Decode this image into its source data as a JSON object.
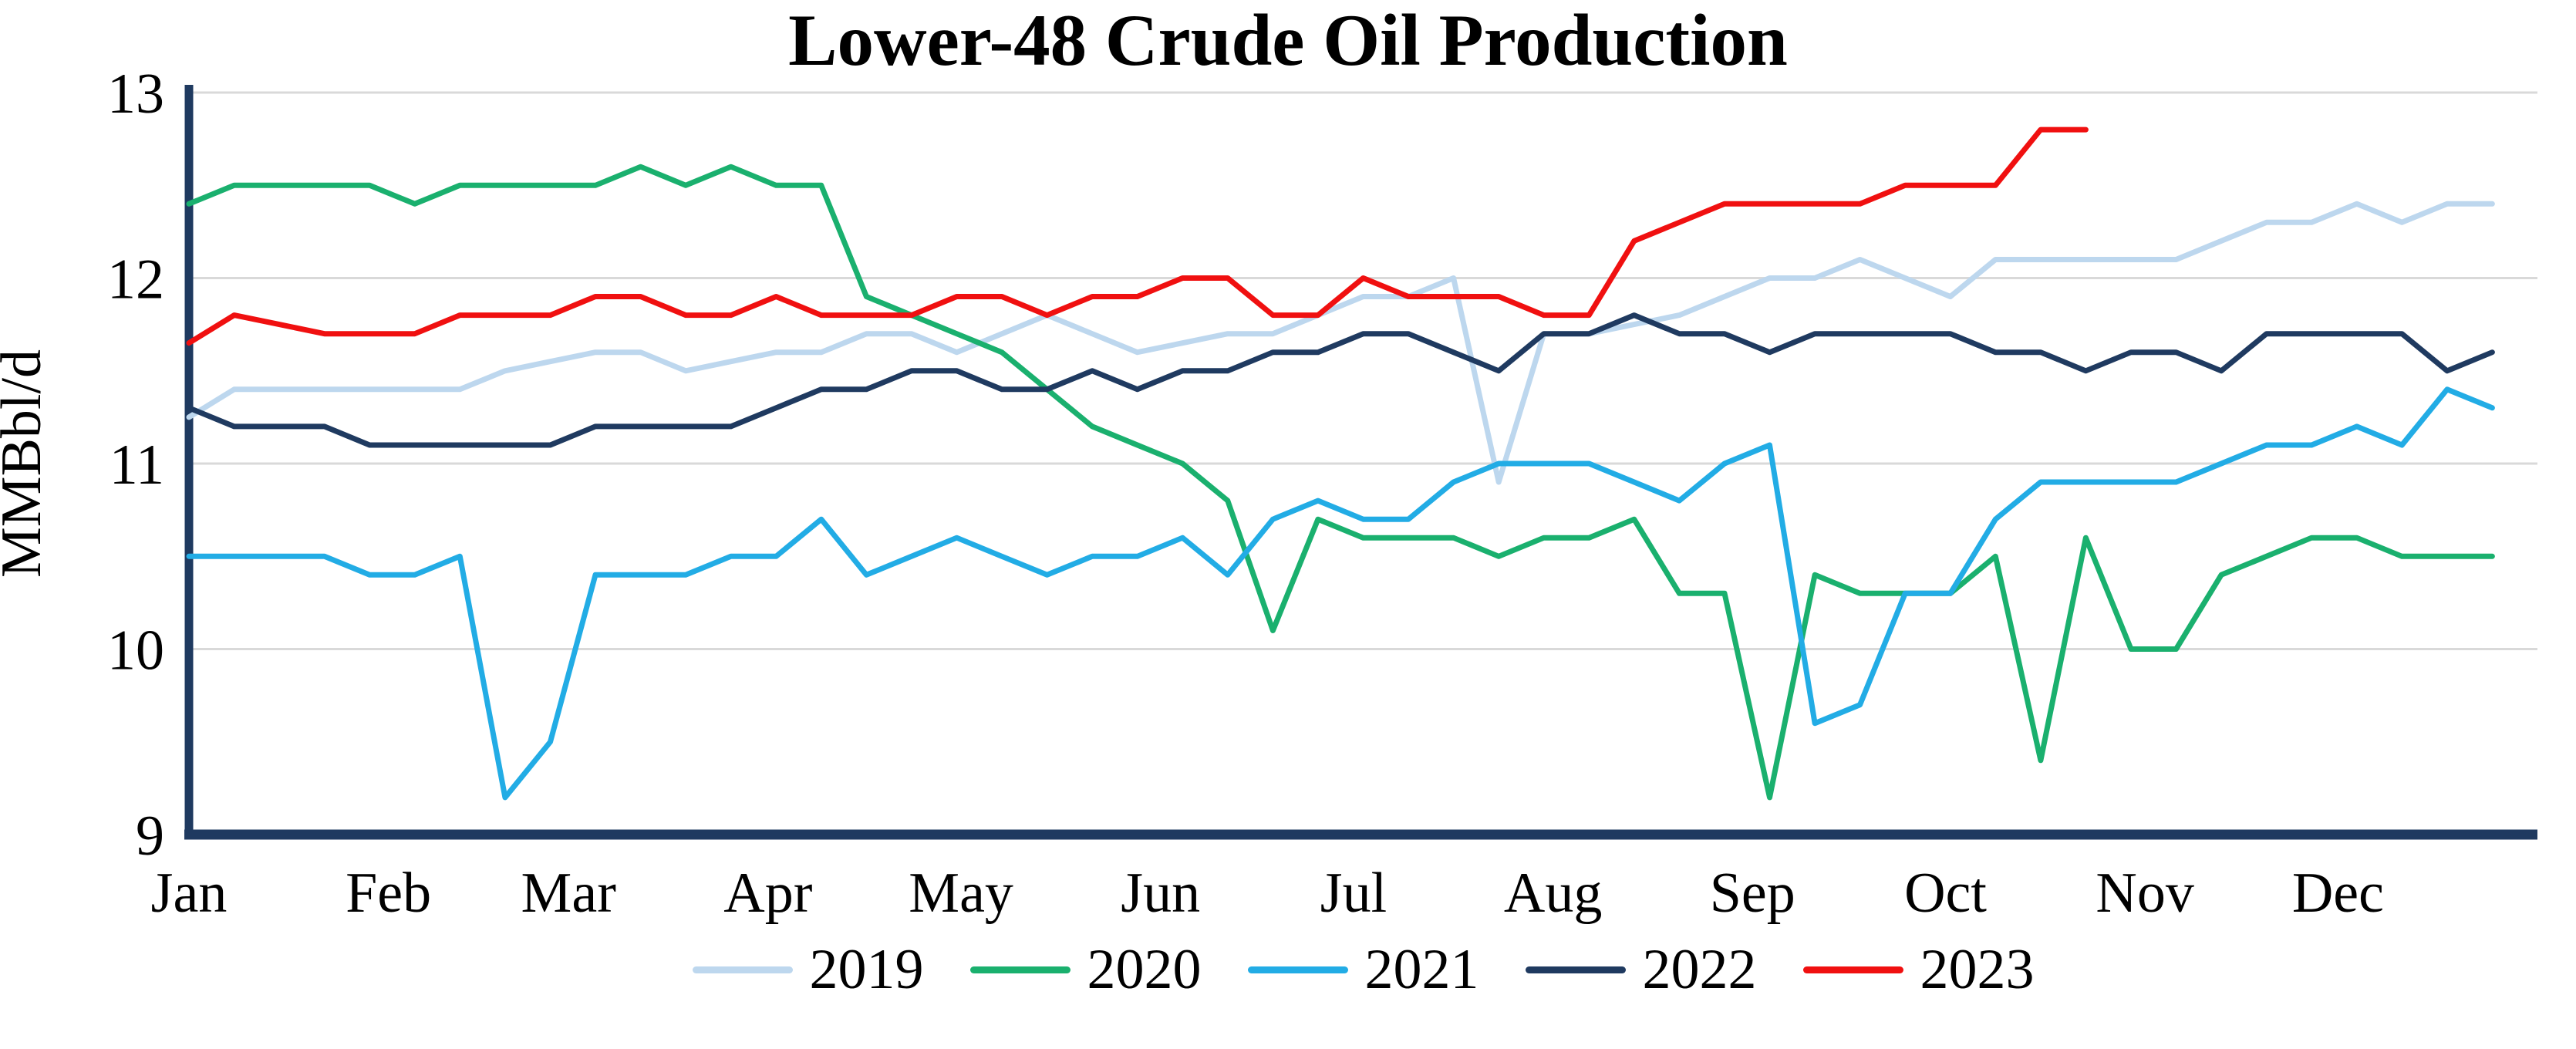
{
  "chart_data": {
    "type": "line",
    "title": "Lower-48 Crude Oil Production",
    "ylabel": "MMBbl/d",
    "ylim": [
      9,
      13
    ],
    "yticks": [
      9,
      10,
      11,
      12,
      13
    ],
    "x_categories": [
      "Jan",
      "Feb",
      "Mar",
      "Apr",
      "May",
      "Jun",
      "Jul",
      "Aug",
      "Sep",
      "Oct",
      "Nov",
      "Dec"
    ],
    "x_unit": "weekly values spanning Jan through Dec",
    "grid": "horizontal",
    "legend_position": "bottom",
    "colors": {
      "axis": "#1f3a60",
      "grid": "#d9d9d9",
      "text": "#000000"
    },
    "series": [
      {
        "name": "2019",
        "color": "#bdd7ee",
        "values": [
          11.25,
          11.4,
          11.4,
          11.4,
          11.4,
          11.4,
          11.4,
          11.5,
          11.55,
          11.6,
          11.6,
          11.5,
          11.55,
          11.6,
          11.6,
          11.7,
          11.7,
          11.6,
          11.7,
          11.8,
          11.7,
          11.6,
          11.65,
          11.7,
          11.7,
          11.8,
          11.9,
          11.9,
          12.0,
          10.9,
          11.7,
          11.7,
          11.75,
          11.8,
          11.9,
          12.0,
          12.0,
          12.1,
          12.0,
          11.9,
          12.1,
          12.1,
          12.1,
          12.1,
          12.1,
          12.2,
          12.3,
          12.3,
          12.4,
          12.3,
          12.4,
          12.4
        ]
      },
      {
        "name": "2020",
        "color": "#1ab06e",
        "values": [
          12.4,
          12.5,
          12.5,
          12.5,
          12.5,
          12.4,
          12.5,
          12.5,
          12.5,
          12.5,
          12.6,
          12.5,
          12.6,
          12.5,
          12.5,
          11.9,
          11.8,
          11.7,
          11.6,
          11.4,
          11.2,
          11.1,
          11.0,
          10.8,
          10.1,
          10.7,
          10.6,
          10.6,
          10.6,
          10.5,
          10.6,
          10.6,
          10.7,
          10.3,
          10.3,
          9.2,
          10.4,
          10.3,
          10.3,
          10.3,
          10.5,
          9.4,
          10.6,
          10.0,
          10.0,
          10.4,
          10.5,
          10.6,
          10.6,
          10.5,
          10.5,
          10.5
        ]
      },
      {
        "name": "2021",
        "color": "#22ace5",
        "values": [
          10.5,
          10.5,
          10.5,
          10.5,
          10.4,
          10.4,
          10.5,
          9.2,
          9.5,
          10.4,
          10.4,
          10.4,
          10.5,
          10.5,
          10.7,
          10.4,
          10.5,
          10.6,
          10.5,
          10.4,
          10.5,
          10.5,
          10.6,
          10.4,
          10.7,
          10.8,
          10.7,
          10.7,
          10.9,
          11.0,
          11.0,
          11.0,
          10.9,
          10.8,
          11.0,
          11.1,
          9.6,
          9.7,
          10.3,
          10.3,
          10.7,
          10.9,
          10.9,
          10.9,
          10.9,
          11.0,
          11.1,
          11.1,
          11.2,
          11.1,
          11.4,
          11.3
        ]
      },
      {
        "name": "2022",
        "color": "#1f3a60",
        "values": [
          11.3,
          11.2,
          11.2,
          11.2,
          11.1,
          11.1,
          11.1,
          11.1,
          11.1,
          11.2,
          11.2,
          11.2,
          11.2,
          11.3,
          11.4,
          11.4,
          11.5,
          11.5,
          11.4,
          11.4,
          11.5,
          11.4,
          11.5,
          11.5,
          11.6,
          11.6,
          11.7,
          11.7,
          11.6,
          11.5,
          11.7,
          11.7,
          11.8,
          11.7,
          11.7,
          11.6,
          11.7,
          11.7,
          11.7,
          11.7,
          11.6,
          11.6,
          11.5,
          11.6,
          11.6,
          11.5,
          11.7,
          11.7,
          11.7,
          11.7,
          11.5,
          11.6
        ]
      },
      {
        "name": "2023",
        "color": "#f01010",
        "values": [
          11.65,
          11.8,
          11.75,
          11.7,
          11.7,
          11.7,
          11.8,
          11.8,
          11.8,
          11.9,
          11.9,
          11.8,
          11.8,
          11.9,
          11.8,
          11.8,
          11.8,
          11.9,
          11.9,
          11.8,
          11.9,
          11.9,
          12.0,
          12.0,
          11.8,
          11.8,
          12.0,
          11.9,
          11.9,
          11.9,
          11.8,
          11.8,
          12.2,
          12.3,
          12.4,
          12.4,
          12.4,
          12.4,
          12.5,
          12.5,
          12.5,
          12.8,
          12.8
        ]
      }
    ]
  }
}
